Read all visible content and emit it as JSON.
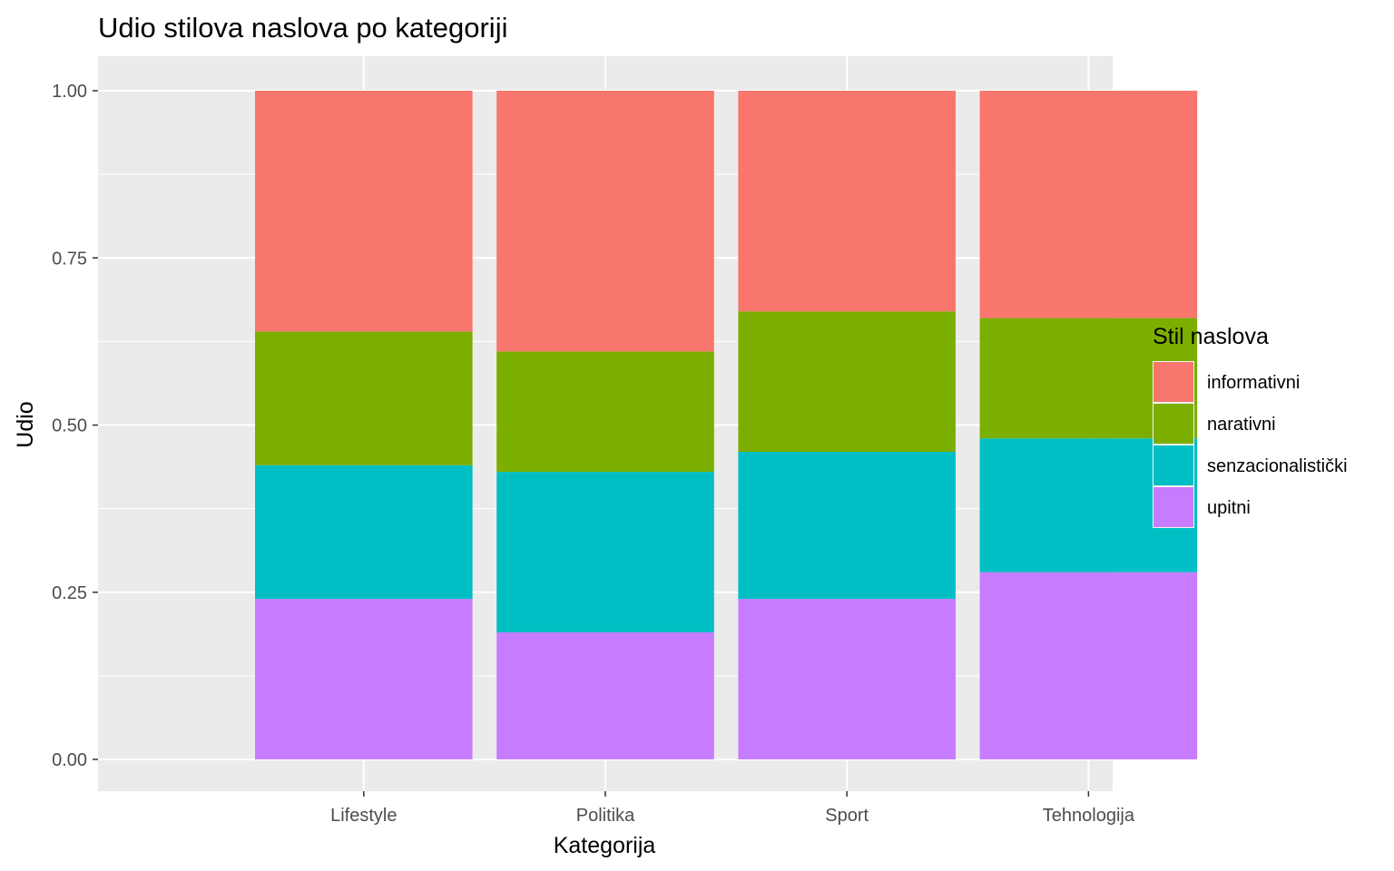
{
  "chart_data": {
    "type": "bar",
    "stacked": true,
    "title": "Udio stilova naslova po kategoriji",
    "xlabel": "Kategorija",
    "ylabel": "Udio",
    "ylim": [
      0,
      1
    ],
    "yticks": [
      "0.00",
      "0.25",
      "0.50",
      "0.75",
      "1.00"
    ],
    "categories": [
      "Lifestyle",
      "Politika",
      "Sport",
      "Tehnologija"
    ],
    "series": [
      {
        "name": "upitni",
        "color": "#C77CFF",
        "values": [
          0.24,
          0.19,
          0.24,
          0.28
        ]
      },
      {
        "name": "senzacionalistički",
        "color": "#00BFC4",
        "values": [
          0.2,
          0.24,
          0.22,
          0.2
        ]
      },
      {
        "name": "narativni",
        "color": "#7CAE00",
        "values": [
          0.2,
          0.18,
          0.21,
          0.18
        ]
      },
      {
        "name": "informativni",
        "color": "#F8766D",
        "values": [
          0.36,
          0.39,
          0.33,
          0.34
        ]
      }
    ],
    "legend": {
      "title": "Stil naslova",
      "position": "right",
      "order": [
        "informativni",
        "narativni",
        "senzacionalistički",
        "upitni"
      ]
    },
    "grid": true,
    "panel_background": "#EBEBEB",
    "grid_color": "#FFFFFF"
  }
}
